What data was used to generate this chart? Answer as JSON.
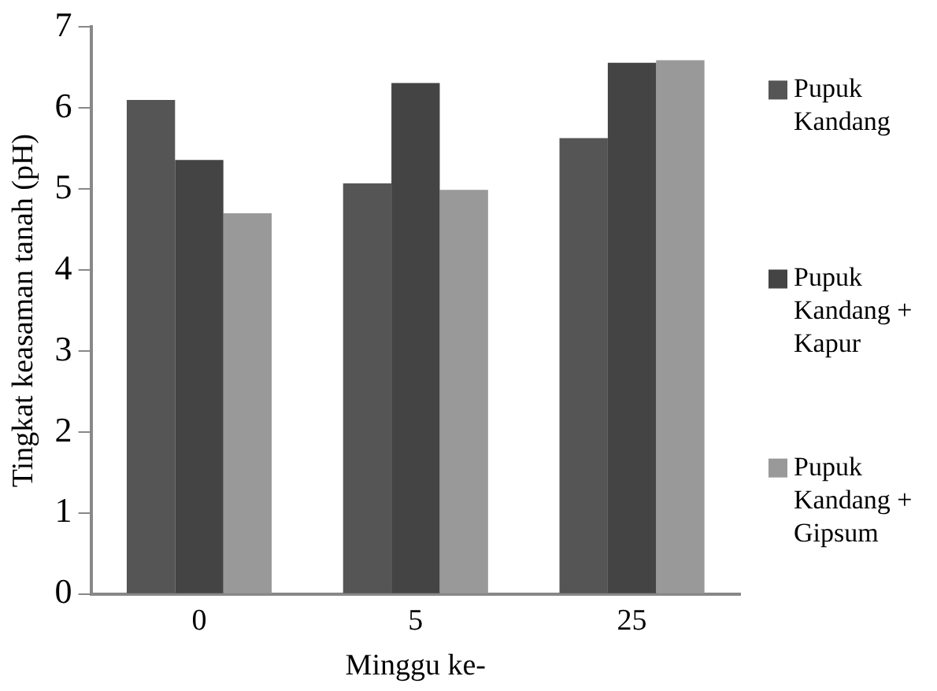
{
  "chart_data": {
    "type": "bar",
    "xlabel": "Minggu ke-",
    "ylabel": "Tingkat keasaman tanah (pH)",
    "categories": [
      "0",
      "5",
      "25"
    ],
    "series": [
      {
        "name": "Pupuk Kandang",
        "color": "#555555",
        "values": [
          6.1,
          5.07,
          5.63
        ]
      },
      {
        "name": "Pupuk Kandang + Kapur",
        "color": "#444444",
        "values": [
          5.36,
          6.31,
          6.56
        ]
      },
      {
        "name": "Pupuk Kandang + Gipsum",
        "color": "#999999",
        "values": [
          4.7,
          4.99,
          6.59
        ]
      }
    ],
    "ylim": [
      0,
      7
    ],
    "yticks": [
      0,
      1,
      2,
      3,
      4,
      5,
      6,
      7
    ],
    "grid": false,
    "legend": "right"
  }
}
